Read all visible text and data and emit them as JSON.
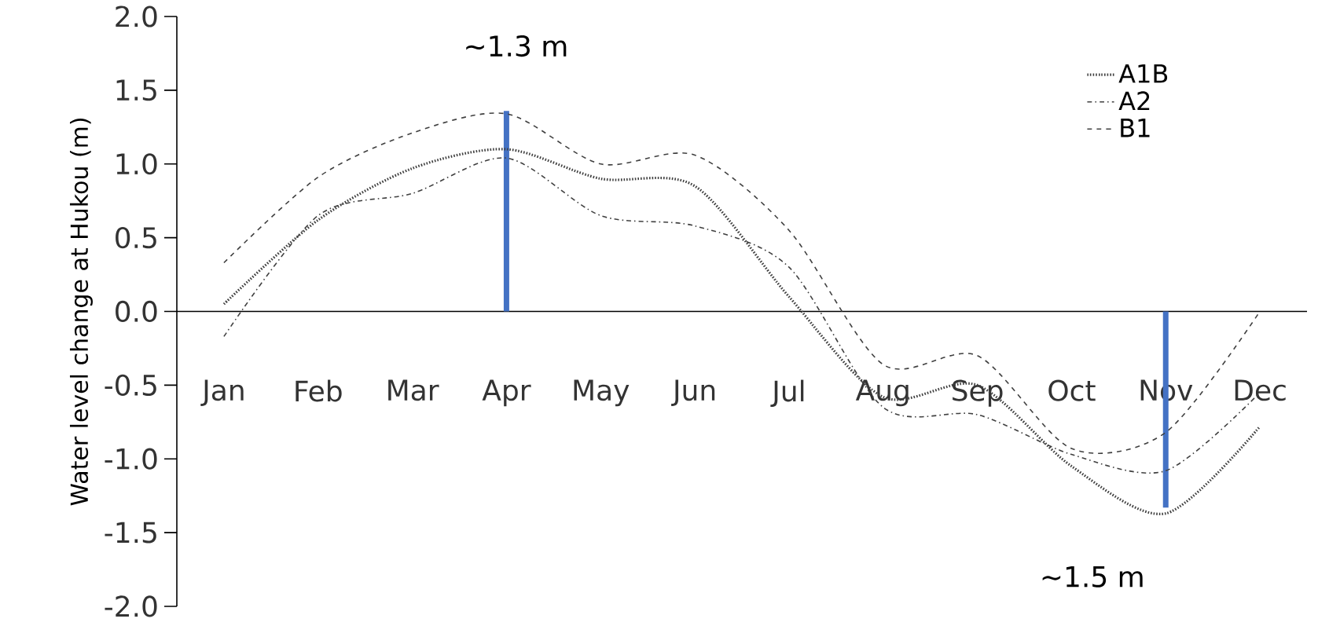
{
  "chart_data": {
    "type": "line",
    "ylabel": "Water level change at Hukou (m)",
    "categories": [
      "Jan",
      "Feb",
      "Mar",
      "Apr",
      "May",
      "Jun",
      "Jul",
      "Aug",
      "Sep",
      "Oct",
      "Nov",
      "Dec"
    ],
    "series": [
      {
        "name": "A1B",
        "color": "#404040",
        "line_style": "dotted",
        "values": [
          0.05,
          0.62,
          0.97,
          1.1,
          0.9,
          0.85,
          0.1,
          -0.58,
          -0.5,
          -1.05,
          -1.37,
          -0.78
        ]
      },
      {
        "name": "A2",
        "color": "#404040",
        "line_style": "dashdotted",
        "values": [
          -0.17,
          0.65,
          0.8,
          1.04,
          0.65,
          0.58,
          0.3,
          -0.65,
          -0.7,
          -0.97,
          -1.08,
          -0.55
        ]
      },
      {
        "name": "B1",
        "color": "#404040",
        "line_style": "dashed",
        "values": [
          0.33,
          0.91,
          1.21,
          1.34,
          1.0,
          1.06,
          0.55,
          -0.36,
          -0.3,
          -0.93,
          -0.82,
          0.0
        ]
      },
      {
        "type": "bar",
        "color": "#4472c4",
        "values": [
          null,
          null,
          null,
          1.36,
          null,
          null,
          null,
          null,
          null,
          null,
          -1.33,
          null
        ]
      }
    ],
    "annotations": [
      "~1.3 m",
      "~1.5 m"
    ],
    "ylim": [
      -2.0,
      2.0
    ],
    "yticks": [
      {
        "value": -2,
        "label": "-2.0"
      },
      {
        "value": -1.5,
        "label": "-1.5"
      },
      {
        "value": -1,
        "label": "-1.0"
      },
      {
        "value": -0.5,
        "label": "-0.5"
      },
      {
        "value": 0,
        "label": "0.0"
      },
      {
        "value": 0.5,
        "label": "0.5"
      },
      {
        "value": 1,
        "label": "1.0"
      },
      {
        "value": 1.5,
        "label": "1.5"
      },
      {
        "value": 2,
        "label": "2.0"
      }
    ],
    "grid": false,
    "legend": "top right",
    "marker": "none"
  }
}
